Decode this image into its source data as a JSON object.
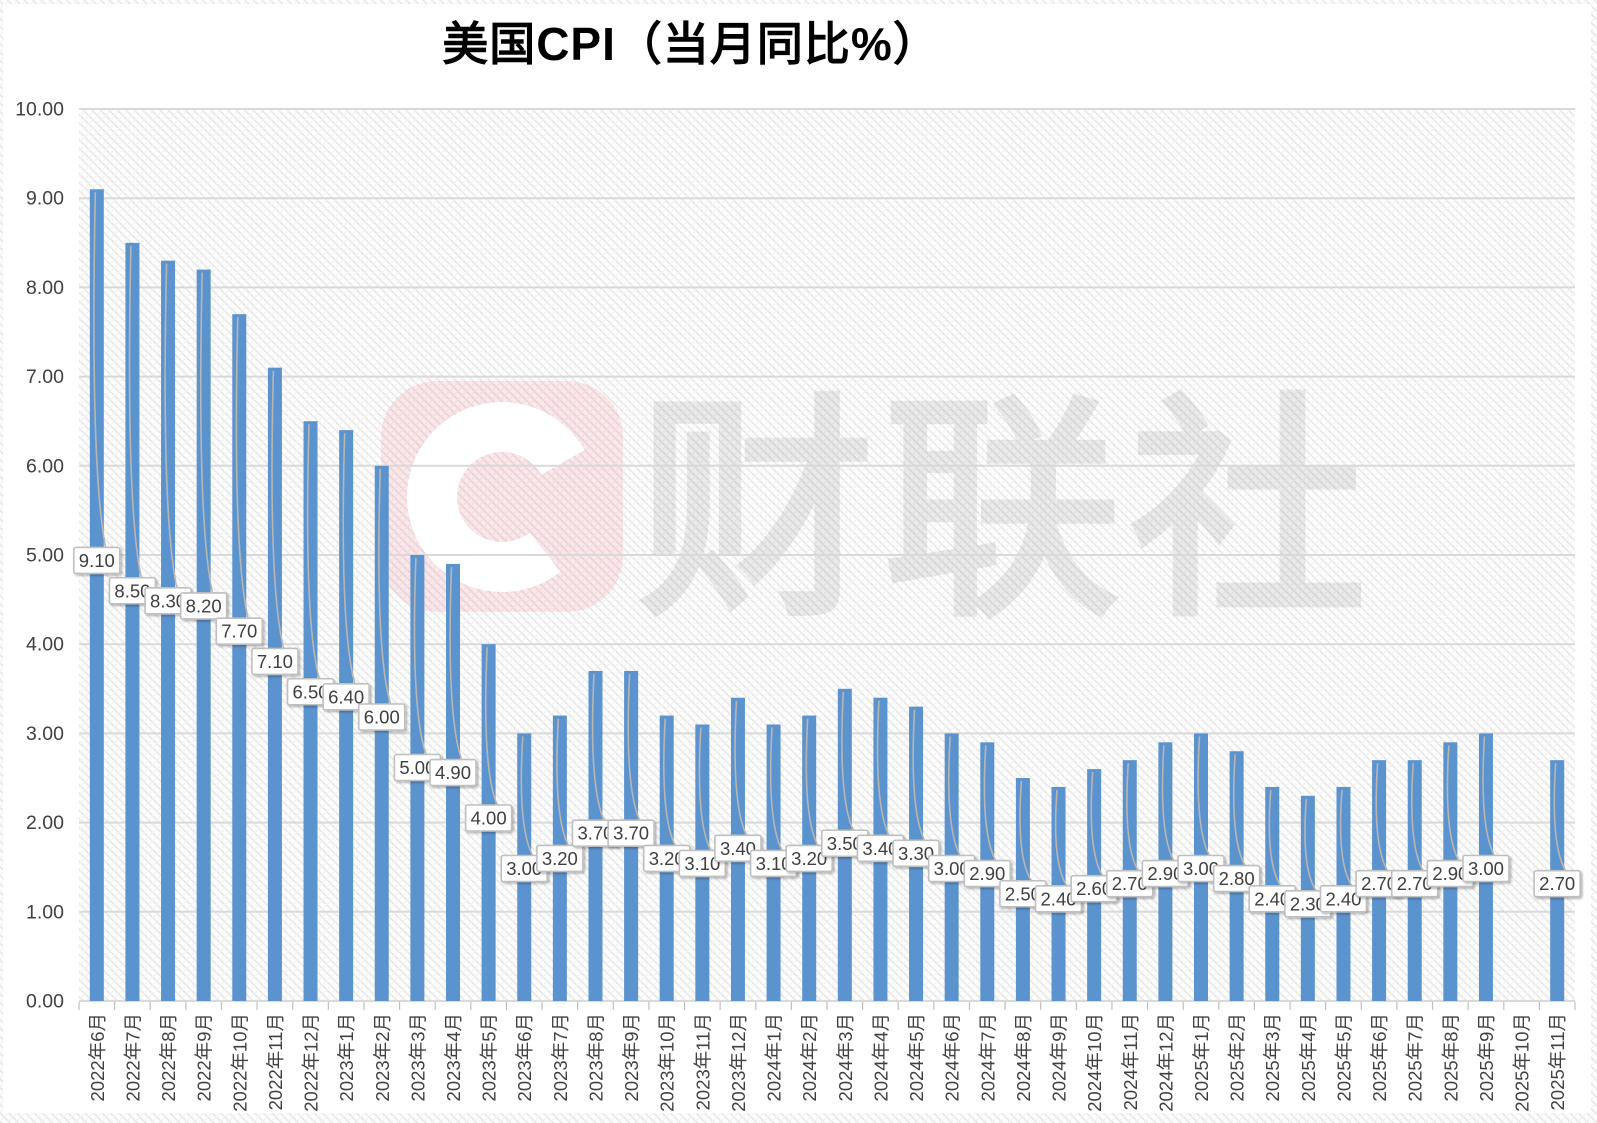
{
  "chart_data": {
    "type": "bar",
    "title": "美国CPI（当月同比%）",
    "xlabel": "",
    "ylabel": "",
    "ylim": [
      0,
      10
    ],
    "ytick_step": 1,
    "ytick_labels": [
      "0.00",
      "1.00",
      "2.00",
      "3.00",
      "4.00",
      "5.00",
      "6.00",
      "7.00",
      "8.00",
      "9.00",
      "10.00"
    ],
    "grid": true,
    "legend_position": "none",
    "categories": [
      "2022年6月",
      "2022年7月",
      "2022年8月",
      "2022年9月",
      "2022年10月",
      "2022年11月",
      "2022年12月",
      "2023年1月",
      "2023年2月",
      "2023年3月",
      "2023年4月",
      "2023年5月",
      "2023年6月",
      "2023年7月",
      "2023年8月",
      "2023年9月",
      "2023年10月",
      "2023年11月",
      "2023年12月",
      "2024年1月",
      "2024年2月",
      "2024年3月",
      "2024年4月",
      "2024年5月",
      "2024年6月",
      "2024年7月",
      "2024年8月",
      "2024年9月",
      "2024年10月",
      "2024年11月",
      "2024年12月",
      "2025年1月",
      "2025年2月",
      "2025年3月",
      "2025年4月",
      "2025年5月",
      "2025年6月",
      "2025年7月",
      "2025年8月",
      "2025年9月",
      "2025年10月",
      "2025年11月"
    ],
    "values": [
      9.1,
      8.5,
      8.3,
      8.2,
      7.7,
      7.1,
      6.5,
      6.4,
      6.0,
      5.0,
      4.9,
      4.0,
      3.0,
      3.2,
      3.7,
      3.7,
      3.2,
      3.1,
      3.4,
      3.1,
      3.2,
      3.5,
      3.4,
      3.3,
      3.0,
      2.9,
      2.5,
      2.4,
      2.6,
      2.7,
      2.9,
      3.0,
      2.8,
      2.4,
      2.3,
      2.4,
      2.7,
      2.7,
      2.9,
      3.0,
      null,
      2.7
    ],
    "data_labels": [
      "9.10",
      "8.50",
      "8.30",
      "8.20",
      "7.70",
      "7.10",
      "6.50",
      "6.40",
      "6.00",
      "5.00",
      "4.90",
      "4.00",
      "3.00",
      "3.20",
      "3.70",
      "3.70",
      "3.20",
      "3.10",
      "3.40",
      "3.10",
      "3.20",
      "3.50",
      "3.40",
      "3.30",
      "3.00",
      "2.90",
      "2.50",
      "2.40",
      "2.60",
      "2.70",
      "2.90",
      "3.00",
      "2.80",
      "2.40",
      "2.30",
      "2.40",
      "2.70",
      "2.70",
      "2.90",
      "3.00",
      "",
      "2.70"
    ],
    "colors": {
      "bar": "#5B93CE",
      "gridline": "#D9D9D9",
      "axis_text": "#404040",
      "tick": "#BFBFBF",
      "callout_fill": "#FFFFFF",
      "callout_border": "#BFBFBF",
      "callout_text": "#3F3F3F",
      "leader_line": "#B9B6B2"
    },
    "watermark": {
      "logo_letter": "C",
      "logo_color": "#E8526E",
      "text": "财联社"
    }
  }
}
